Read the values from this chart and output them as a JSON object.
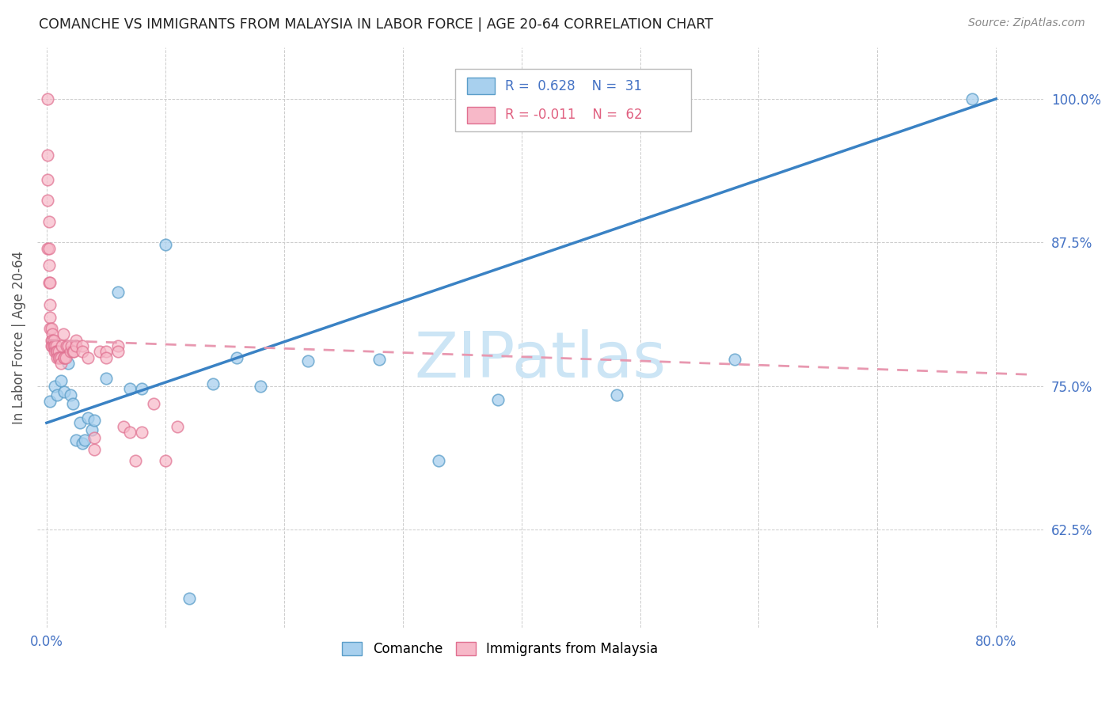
{
  "title": "COMANCHE VS IMMIGRANTS FROM MALAYSIA IN LABOR FORCE | AGE 20-64 CORRELATION CHART",
  "source": "Source: ZipAtlas.com",
  "ylabel": "In Labor Force | Age 20-64",
  "y_ticks": [
    0.625,
    0.75,
    0.875,
    1.0
  ],
  "y_tick_labels": [
    "62.5%",
    "75.0%",
    "87.5%",
    "100.0%"
  ],
  "xlim": [
    -0.008,
    0.84
  ],
  "ylim": [
    0.54,
    1.045
  ],
  "legend_blue_r": "R =  0.628",
  "legend_blue_n": "N =  31",
  "legend_pink_r": "R = -0.011",
  "legend_pink_n": "N =  62",
  "blue_fill": "#a8d0ee",
  "blue_edge": "#5b9ec9",
  "pink_fill": "#f7b8c8",
  "pink_edge": "#e07090",
  "blue_line_color": "#3a82c4",
  "pink_line_color": "#e898b0",
  "watermark_color": "#cce5f5",
  "blue_scatter_x": [
    0.003,
    0.007,
    0.009,
    0.012,
    0.015,
    0.018,
    0.02,
    0.022,
    0.025,
    0.028,
    0.03,
    0.032,
    0.035,
    0.038,
    0.04,
    0.05,
    0.06,
    0.07,
    0.08,
    0.1,
    0.12,
    0.14,
    0.16,
    0.18,
    0.22,
    0.28,
    0.33,
    0.38,
    0.48,
    0.58,
    0.78
  ],
  "blue_scatter_y": [
    0.737,
    0.75,
    0.742,
    0.755,
    0.745,
    0.77,
    0.742,
    0.735,
    0.703,
    0.718,
    0.7,
    0.703,
    0.722,
    0.712,
    0.72,
    0.757,
    0.832,
    0.748,
    0.748,
    0.873,
    0.565,
    0.752,
    0.775,
    0.75,
    0.772,
    0.773,
    0.685,
    0.738,
    0.742,
    0.773,
    1.0
  ],
  "pink_scatter_x": [
    0.001,
    0.001,
    0.001,
    0.001,
    0.001,
    0.002,
    0.002,
    0.002,
    0.002,
    0.003,
    0.003,
    0.003,
    0.003,
    0.004,
    0.004,
    0.004,
    0.005,
    0.005,
    0.005,
    0.006,
    0.006,
    0.007,
    0.007,
    0.008,
    0.008,
    0.009,
    0.009,
    0.01,
    0.01,
    0.011,
    0.012,
    0.012,
    0.013,
    0.014,
    0.015,
    0.015,
    0.016,
    0.017,
    0.018,
    0.02,
    0.021,
    0.022,
    0.023,
    0.025,
    0.025,
    0.03,
    0.03,
    0.035,
    0.04,
    0.04,
    0.045,
    0.05,
    0.05,
    0.06,
    0.06,
    0.065,
    0.07,
    0.075,
    0.08,
    0.09,
    0.1,
    0.11
  ],
  "pink_scatter_y": [
    1.0,
    0.951,
    0.93,
    0.912,
    0.87,
    0.893,
    0.87,
    0.855,
    0.84,
    0.84,
    0.821,
    0.81,
    0.8,
    0.8,
    0.79,
    0.785,
    0.795,
    0.79,
    0.785,
    0.79,
    0.785,
    0.785,
    0.78,
    0.785,
    0.78,
    0.78,
    0.775,
    0.78,
    0.775,
    0.775,
    0.775,
    0.77,
    0.785,
    0.795,
    0.775,
    0.775,
    0.775,
    0.785,
    0.785,
    0.78,
    0.785,
    0.78,
    0.78,
    0.79,
    0.785,
    0.785,
    0.78,
    0.775,
    0.705,
    0.695,
    0.78,
    0.78,
    0.775,
    0.785,
    0.78,
    0.715,
    0.71,
    0.685,
    0.71,
    0.735,
    0.685,
    0.715
  ],
  "blue_trend_x": [
    0.0,
    0.8
  ],
  "blue_trend_y": [
    0.718,
    1.0
  ],
  "pink_trend_x": [
    0.0,
    0.83
  ],
  "pink_trend_y": [
    0.79,
    0.76
  ]
}
